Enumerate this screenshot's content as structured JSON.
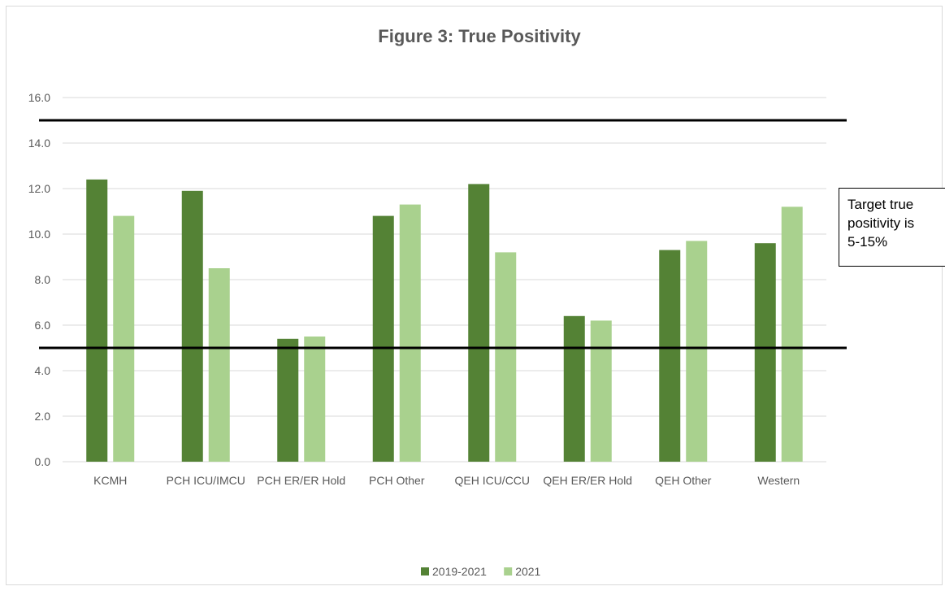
{
  "chart_data": {
    "type": "bar",
    "title": "Figure 3: True Positivity",
    "categories": [
      "KCMH",
      "PCH ICU/IMCU",
      "PCH ER/ER Hold",
      "PCH Other",
      "QEH ICU/CCU",
      "QEH ER/ER Hold",
      "QEH Other",
      "Western"
    ],
    "series": [
      {
        "name": "2019-2021",
        "color": "#548235",
        "values": [
          12.4,
          11.9,
          5.4,
          10.8,
          12.2,
          6.4,
          9.3,
          9.6
        ]
      },
      {
        "name": "2021",
        "color": "#a9d18e",
        "values": [
          10.8,
          8.5,
          5.5,
          11.3,
          9.2,
          6.2,
          9.7,
          11.2
        ]
      }
    ],
    "ylim": [
      0,
      16
    ],
    "yticks": [
      "0.0",
      "2.0",
      "4.0",
      "6.0",
      "8.0",
      "10.0",
      "12.0",
      "14.0",
      "16.0"
    ],
    "reference_lines": [
      15,
      5
    ],
    "grid": true,
    "legend_position": "bottom",
    "annotation": [
      "Target true",
      "positivity is",
      "5-15%"
    ]
  }
}
